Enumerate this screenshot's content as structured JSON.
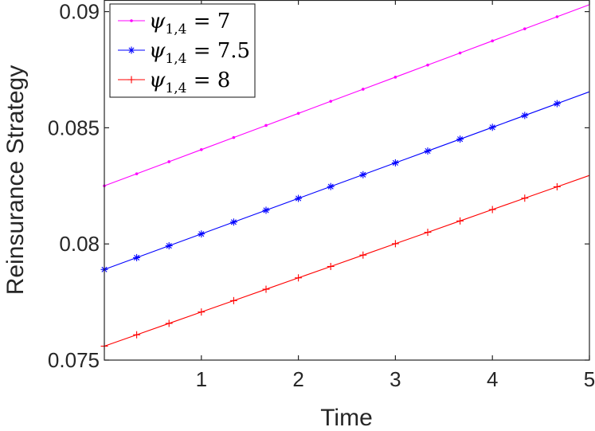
{
  "chart_data": {
    "type": "line",
    "title": "",
    "xlabel": "Time",
    "ylabel": "Reinsurance Strategy",
    "xlim": [
      0,
      5
    ],
    "ylim": [
      0.075,
      0.0905
    ],
    "xticks": [
      1,
      2,
      3,
      4,
      5
    ],
    "xtick_labels": [
      "1",
      "2",
      "3",
      "4",
      "5"
    ],
    "yticks": [
      0.075,
      0.08,
      0.085,
      0.09
    ],
    "ytick_labels": [
      "0.075",
      "0.08",
      "0.085",
      "0.09"
    ],
    "grid": false,
    "legend_position": "top-left",
    "series": [
      {
        "name": "ψ1,4 = 7",
        "legend": {
          "symbol": "ψ",
          "subscript": "1,4",
          "relation": " = ",
          "value": "7"
        },
        "color": "#ff00ff",
        "marker": "dot",
        "x": [
          0,
          0.3333,
          0.6667,
          1,
          1.3333,
          1.6667,
          2,
          2.3333,
          2.6667,
          3,
          3.3333,
          3.6667,
          4,
          4.3333,
          4.6667,
          5
        ],
        "y": [
          0.0825,
          0.08302,
          0.08354,
          0.08406,
          0.08458,
          0.0851,
          0.08562,
          0.08614,
          0.08666,
          0.08718,
          0.0877,
          0.08822,
          0.08874,
          0.08926,
          0.08978,
          0.0903
        ]
      },
      {
        "name": "ψ1,4 = 7.5",
        "legend": {
          "symbol": "ψ",
          "subscript": "1,4",
          "relation": " = ",
          "value": "7.5"
        },
        "color": "#0000ff",
        "marker": "asterisk",
        "x": [
          0,
          0.3333,
          0.6667,
          1,
          1.3333,
          1.6667,
          2,
          2.3333,
          2.6667,
          3,
          3.3333,
          3.6667,
          4,
          4.3333,
          4.6667,
          5
        ],
        "y": [
          0.0789,
          0.07941,
          0.07992,
          0.08043,
          0.08094,
          0.08145,
          0.08196,
          0.08247,
          0.08298,
          0.08349,
          0.084,
          0.08451,
          0.08502,
          0.08553,
          0.08604,
          0.08655
        ]
      },
      {
        "name": "ψ1,4 = 8",
        "legend": {
          "symbol": "ψ",
          "subscript": "1,4",
          "relation": " = ",
          "value": "8"
        },
        "color": "#ff0000",
        "marker": "plus",
        "x": [
          0,
          0.3333,
          0.6667,
          1,
          1.3333,
          1.6667,
          2,
          2.3333,
          2.6667,
          3,
          3.3333,
          3.6667,
          4,
          4.3333,
          4.6667,
          5
        ],
        "y": [
          0.0756,
          0.07609,
          0.07658,
          0.07707,
          0.07756,
          0.07805,
          0.07854,
          0.07903,
          0.07952,
          0.08001,
          0.0805,
          0.08099,
          0.08148,
          0.08197,
          0.08246,
          0.08295
        ]
      }
    ]
  }
}
